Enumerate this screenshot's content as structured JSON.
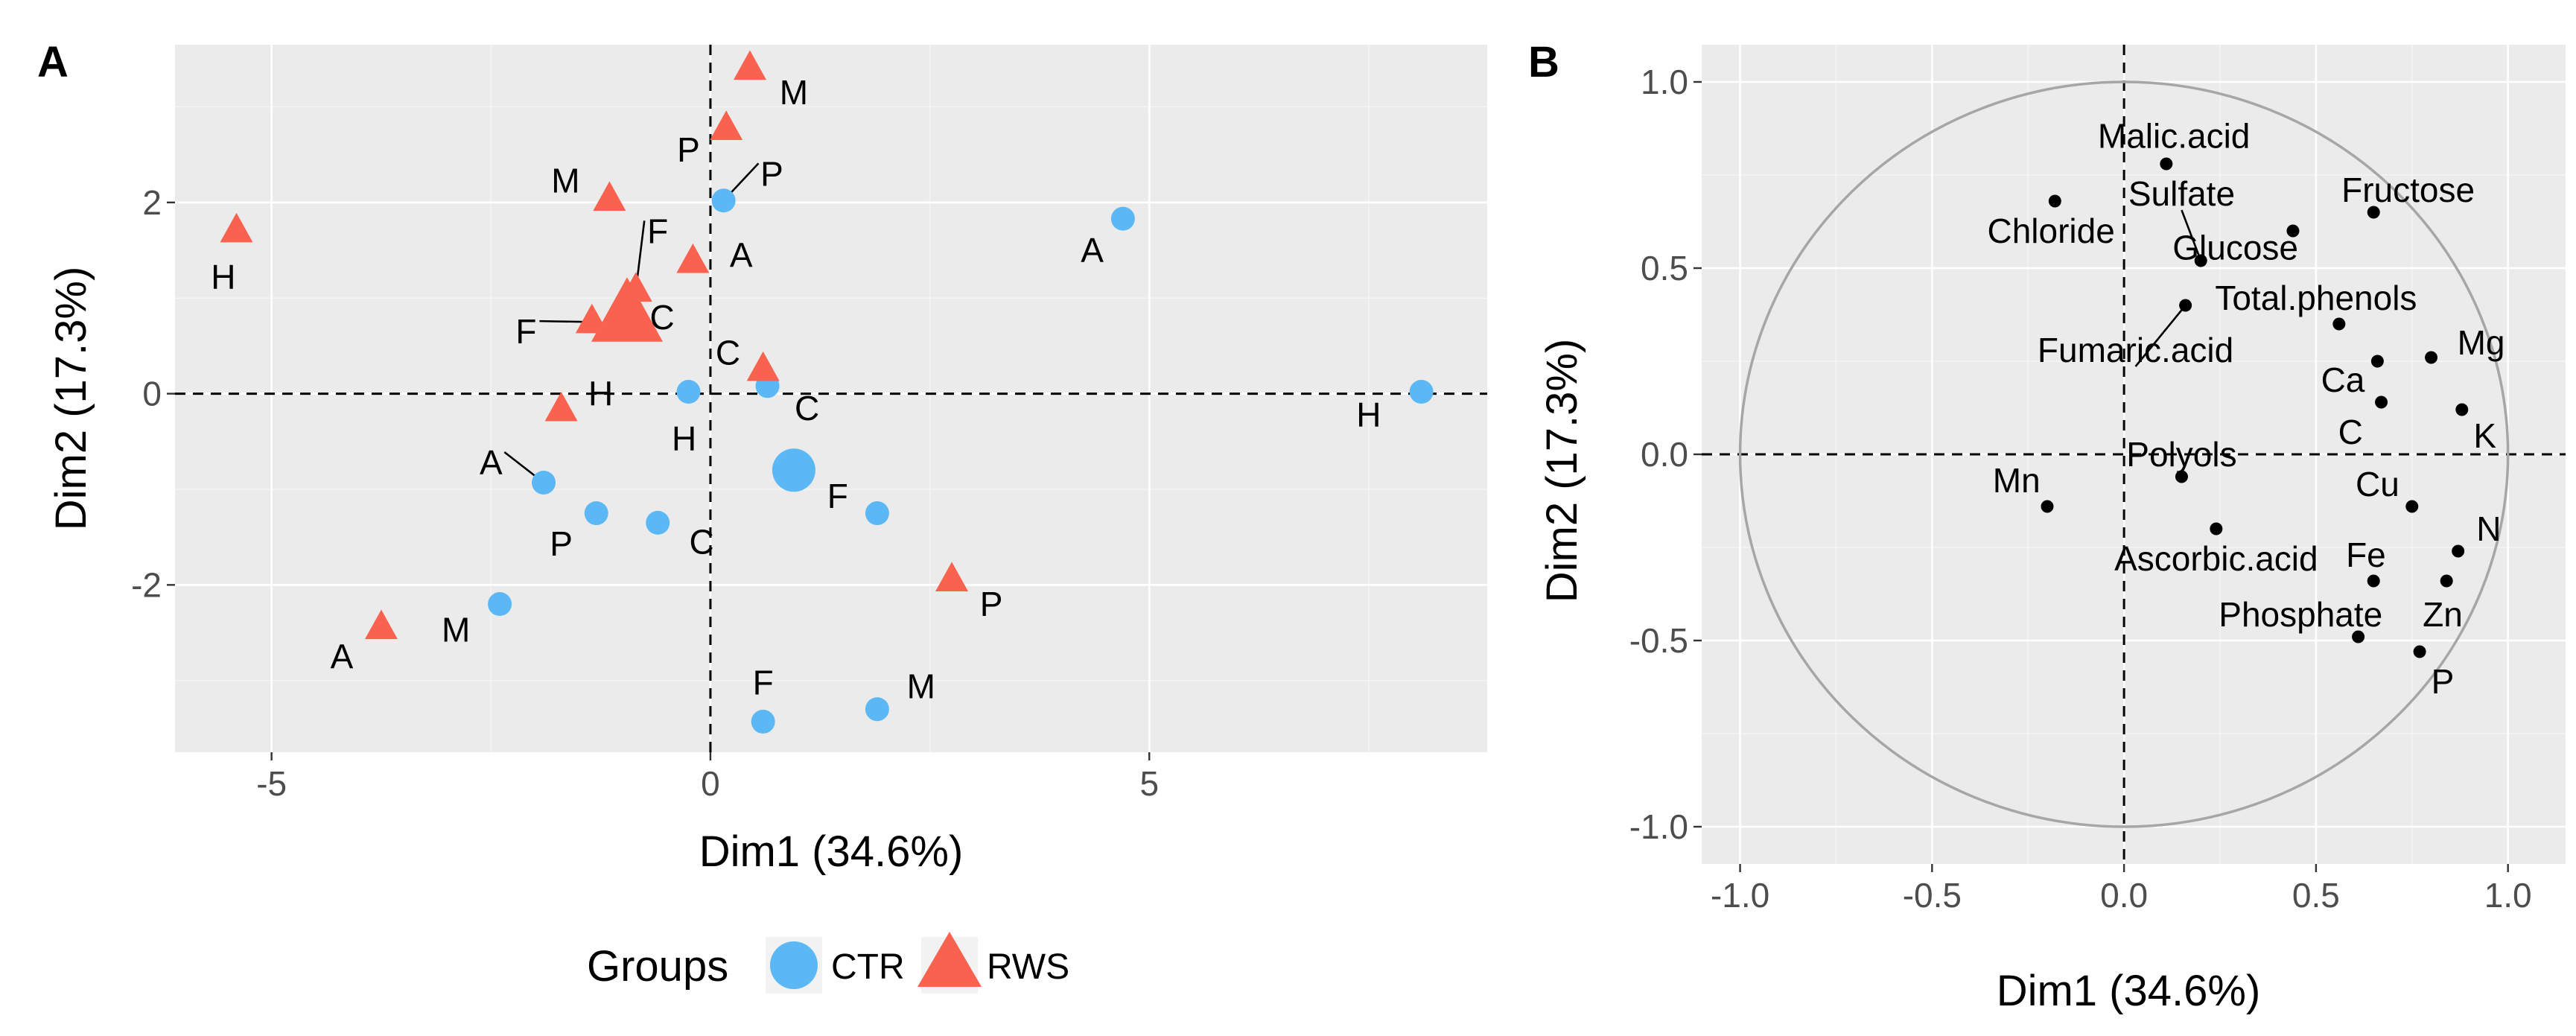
{
  "panels": {
    "a_tag": "A",
    "b_tag": "B"
  },
  "colors": {
    "ctr": "#5bb8f5",
    "rws": "#f8624e",
    "panel": "#ebebeb",
    "vector_point": "#000000"
  },
  "chart_data": [
    {
      "type": "scatter",
      "panel": "A",
      "title": "",
      "xlabel": "Dim1 (34.6%)",
      "ylabel": "Dim2 (17.3%)",
      "xlim": [
        -6.1,
        8.85
      ],
      "ylim": [
        -3.75,
        3.65
      ],
      "xticks": [
        -5,
        0,
        5
      ],
      "xtick_labels": [
        "-5",
        "0",
        "5"
      ],
      "yticks": [
        -2,
        0,
        2
      ],
      "ytick_labels": [
        "-2",
        "0",
        "2"
      ],
      "grid": true,
      "legend": {
        "title": "Groups",
        "position": "bottom",
        "entries": [
          {
            "name": "CTR",
            "shape": "circle",
            "color": "#5bb8f5"
          },
          {
            "name": "RWS",
            "shape": "triangle",
            "color": "#f8624e"
          }
        ]
      },
      "series": [
        {
          "name": "CTR",
          "shape": "circle",
          "points": [
            {
              "label": "A",
              "x": 4.7,
              "y": 1.83,
              "lx": 4.35,
              "ly": 1.5
            },
            {
              "label": "H",
              "x": 8.1,
              "y": 0.02,
              "lx": 7.5,
              "ly": -0.22
            },
            {
              "label": "P",
              "x": 0.15,
              "y": 2.02,
              "lx": 0.7,
              "ly": 2.3,
              "leader": true
            },
            {
              "label": "H",
              "x": -0.25,
              "y": 0.02,
              "lx": -0.3,
              "ly": -0.47
            },
            {
              "label": "C",
              "x": 0.65,
              "y": 0.08,
              "lx": 1.1,
              "ly": -0.15
            },
            {
              "label": "A",
              "x": -1.9,
              "y": -0.93,
              "lx": -2.5,
              "ly": -0.72,
              "leader": true
            },
            {
              "label": "P",
              "x": -1.3,
              "y": -1.25,
              "lx": -1.7,
              "ly": -1.57
            },
            {
              "label": "C",
              "x": -0.6,
              "y": -1.35,
              "lx": -0.1,
              "ly": -1.55
            },
            {
              "label": "F",
              "x": 1.9,
              "y": -1.25,
              "lx": 1.45,
              "ly": -1.07
            },
            {
              "label": "M",
              "x": -2.4,
              "y": -2.2,
              "lx": -2.9,
              "ly": -2.47
            },
            {
              "label": "F",
              "x": 0.6,
              "y": -3.43,
              "lx": 0.6,
              "ly": -3.02
            },
            {
              "label": "M",
              "x": 1.9,
              "y": -3.3,
              "lx": 2.4,
              "ly": -3.06
            }
          ],
          "centroid": {
            "x": 0.95,
            "y": -0.8
          }
        },
        {
          "name": "RWS",
          "shape": "triangle",
          "points": [
            {
              "label": "M",
              "x": 0.45,
              "y": 3.4,
              "lx": 0.95,
              "ly": 3.15
            },
            {
              "label": "P",
              "x": 0.18,
              "y": 2.77,
              "lx": -0.25,
              "ly": 2.55
            },
            {
              "label": "M",
              "x": -1.15,
              "y": 2.03,
              "lx": -1.65,
              "ly": 2.23
            },
            {
              "label": "H",
              "x": -5.4,
              "y": 1.7,
              "lx": -5.55,
              "ly": 1.22
            },
            {
              "label": "A",
              "x": -0.2,
              "y": 1.38,
              "lx": 0.35,
              "ly": 1.45
            },
            {
              "label": "F",
              "x": -0.85,
              "y": 1.08,
              "lx": -0.6,
              "ly": 1.7,
              "leader": true
            },
            {
              "label": "F",
              "x": -1.35,
              "y": 0.75,
              "lx": -2.1,
              "ly": 0.65,
              "leader": true
            },
            {
              "label": "C",
              "x": 0.6,
              "y": 0.25,
              "lx": 0.2,
              "ly": 0.43
            },
            {
              "label": "H",
              "x": -1.7,
              "y": -0.17,
              "lx": -1.25,
              "ly": 0.0
            },
            {
              "label": "P",
              "x": 2.75,
              "y": -1.95,
              "lx": 3.2,
              "ly": -2.2
            },
            {
              "label": "A",
              "x": -3.75,
              "y": -2.45,
              "lx": -4.2,
              "ly": -2.75
            }
          ],
          "centroid": {
            "x": -0.95,
            "y": 0.8,
            "label": "C",
            "lx": -0.55,
            "ly": 0.8
          }
        }
      ]
    },
    {
      "type": "scatter",
      "panel": "B",
      "title": "",
      "xlabel": "Dim1 (34.6%)",
      "ylabel": "Dim2 (17.3%)",
      "xlim": [
        -1.1,
        1.15
      ],
      "ylim": [
        -1.1,
        1.1
      ],
      "xticks": [
        -1.0,
        -0.5,
        0.0,
        0.5,
        1.0
      ],
      "xtick_labels": [
        "-1.0",
        "-0.5",
        "0.0",
        "0.5",
        "1.0"
      ],
      "yticks": [
        -1.0,
        -0.5,
        0.0,
        0.5,
        1.0
      ],
      "ytick_labels": [
        "-1.0",
        "-0.5",
        "0.0",
        "0.5",
        "1.0"
      ],
      "grid": true,
      "correlation_circle": true,
      "points": [
        {
          "label": "Malic.acid",
          "x": 0.11,
          "y": 0.78,
          "lx": 0.13,
          "ly": 0.855
        },
        {
          "label": "Chloride",
          "x": -0.18,
          "y": 0.68,
          "lx": -0.19,
          "ly": 0.6
        },
        {
          "label": "Sulfate",
          "x": 0.2,
          "y": 0.52,
          "lx": 0.15,
          "ly": 0.7,
          "leader": true
        },
        {
          "label": "Glucose",
          "x": 0.44,
          "y": 0.6,
          "lx": 0.29,
          "ly": 0.555
        },
        {
          "label": "Fructose",
          "x": 0.65,
          "y": 0.65,
          "lx": 0.74,
          "ly": 0.71
        },
        {
          "label": "Total.phenols",
          "x": 0.56,
          "y": 0.35,
          "lx": 0.5,
          "ly": 0.42
        },
        {
          "label": "Fumaric.acid",
          "x": 0.16,
          "y": 0.4,
          "lx": 0.03,
          "ly": 0.28,
          "leader": true
        },
        {
          "label": "Mg",
          "x": 0.8,
          "y": 0.26,
          "lx": 0.93,
          "ly": 0.3
        },
        {
          "label": "Ca",
          "x": 0.66,
          "y": 0.25,
          "lx": 0.57,
          "ly": 0.2
        },
        {
          "label": "C",
          "x": 0.67,
          "y": 0.14,
          "lx": 0.59,
          "ly": 0.06
        },
        {
          "label": "K",
          "x": 0.88,
          "y": 0.12,
          "lx": 0.94,
          "ly": 0.05
        },
        {
          "label": "Polyols",
          "x": 0.15,
          "y": -0.06,
          "lx": 0.15,
          "ly": -0.0
        },
        {
          "label": "Mn",
          "x": -0.2,
          "y": -0.14,
          "lx": -0.28,
          "ly": -0.07
        },
        {
          "label": "Cu",
          "x": 0.75,
          "y": -0.14,
          "lx": 0.66,
          "ly": -0.08
        },
        {
          "label": "Ascorbic.acid",
          "x": 0.24,
          "y": -0.2,
          "lx": 0.24,
          "ly": -0.28
        },
        {
          "label": "N",
          "x": 0.87,
          "y": -0.26,
          "lx": 0.95,
          "ly": -0.2
        },
        {
          "label": "Fe",
          "x": 0.65,
          "y": -0.34,
          "lx": 0.63,
          "ly": -0.27
        },
        {
          "label": "Zn",
          "x": 0.84,
          "y": -0.34,
          "lx": 0.83,
          "ly": -0.43
        },
        {
          "label": "Phosphate",
          "x": 0.61,
          "y": -0.49,
          "lx": 0.46,
          "ly": -0.43
        },
        {
          "label": "P",
          "x": 0.77,
          "y": -0.53,
          "lx": 0.83,
          "ly": -0.61
        }
      ]
    }
  ]
}
